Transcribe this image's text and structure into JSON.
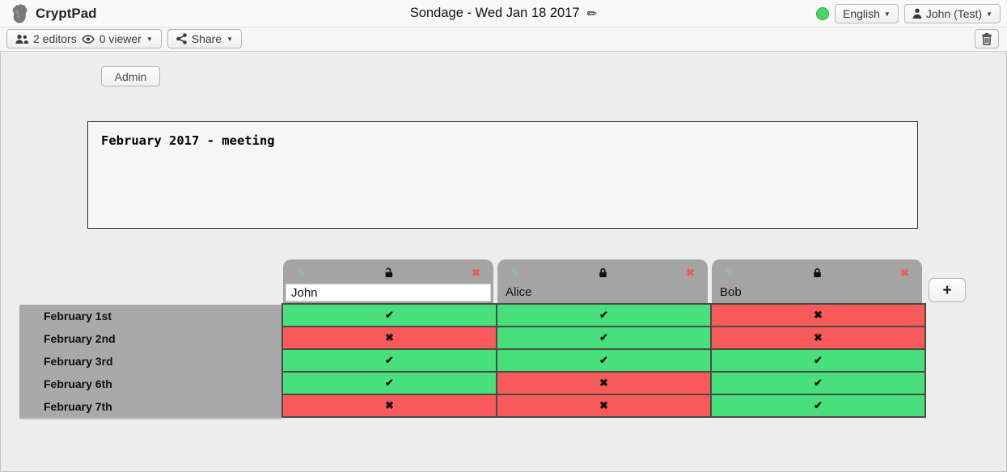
{
  "topbar": {
    "app_name": "CryptPad",
    "title": "Sondage - Wed Jan 18 2017",
    "language_button": "English",
    "user_button": "John (Test)",
    "status_color": "#4fd563"
  },
  "toolbar": {
    "editors_label": "2 editors",
    "viewers_label": "0 viewer",
    "share_label": "Share"
  },
  "admin_button_label": "Admin",
  "description": "February 2017 - meeting",
  "icons": {
    "title_pencil": "✏",
    "pencil": "✎",
    "cross": "✖",
    "caret": "▼",
    "plus": "+"
  },
  "poll": {
    "columns": [
      {
        "name": "John",
        "editable": true,
        "locked": false
      },
      {
        "name": "Alice",
        "editable": false,
        "locked": true
      },
      {
        "name": "Bob",
        "editable": false,
        "locked": true
      }
    ],
    "add_column_label": "+",
    "rows": [
      {
        "label": "February 1st",
        "votes": [
          "yes",
          "yes",
          "no"
        ]
      },
      {
        "label": "February 2nd",
        "votes": [
          "no",
          "yes",
          "no"
        ]
      },
      {
        "label": "February 3rd",
        "votes": [
          "yes",
          "yes",
          "yes"
        ]
      },
      {
        "label": "February 6th",
        "votes": [
          "yes",
          "no",
          "yes"
        ]
      },
      {
        "label": "February 7th",
        "votes": [
          "no",
          "no",
          "yes"
        ]
      }
    ],
    "glyphs": {
      "yes": "✔",
      "no": "✖"
    },
    "colors": {
      "yes": "#47e07d",
      "no": "#f95b5b"
    }
  }
}
